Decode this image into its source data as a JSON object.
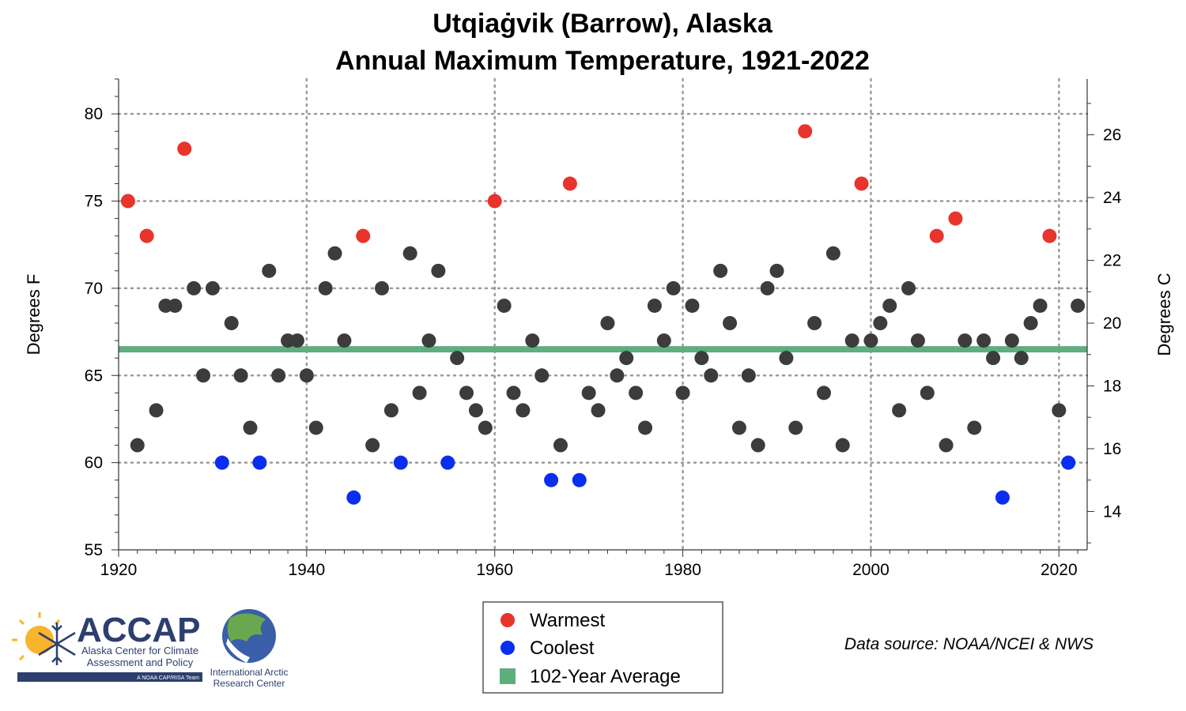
{
  "chart_data": {
    "type": "scatter",
    "title": [
      "Utqiaġvik (Barrow), Alaska",
      "Annual Maximum Temperature, 1921-2022"
    ],
    "ylabel": "Degrees F",
    "y2label": "Degrees C",
    "xlim": [
      1920,
      2023
    ],
    "ylim": [
      55,
      82
    ],
    "y2lim": [
      12.78,
      27.78
    ],
    "x_ticks": [
      1920,
      1940,
      1960,
      1980,
      2000,
      2020
    ],
    "y_ticks": [
      55,
      60,
      65,
      70,
      75,
      80
    ],
    "y2_ticks": [
      14,
      16,
      18,
      20,
      22,
      24,
      26
    ],
    "grid": true,
    "average": {
      "name": "102-Year Average",
      "value": 66.5,
      "color": "#5fae7e"
    },
    "colors": {
      "Warmest": "#e8342a",
      "Coolest": "#0a2ef0",
      "Normal": "#3c3c3c"
    },
    "points": [
      {
        "x": 1921,
        "y": 75,
        "c": "Warmest"
      },
      {
        "x": 1922,
        "y": 61,
        "c": "Normal"
      },
      {
        "x": 1923,
        "y": 73,
        "c": "Warmest"
      },
      {
        "x": 1924,
        "y": 63,
        "c": "Normal"
      },
      {
        "x": 1925,
        "y": 69,
        "c": "Normal"
      },
      {
        "x": 1926,
        "y": 69,
        "c": "Normal"
      },
      {
        "x": 1927,
        "y": 78,
        "c": "Warmest"
      },
      {
        "x": 1928,
        "y": 70,
        "c": "Normal"
      },
      {
        "x": 1929,
        "y": 65,
        "c": "Normal"
      },
      {
        "x": 1930,
        "y": 70,
        "c": "Normal"
      },
      {
        "x": 1931,
        "y": 60,
        "c": "Coolest"
      },
      {
        "x": 1932,
        "y": 68,
        "c": "Normal"
      },
      {
        "x": 1933,
        "y": 65,
        "c": "Normal"
      },
      {
        "x": 1934,
        "y": 62,
        "c": "Normal"
      },
      {
        "x": 1935,
        "y": 60,
        "c": "Coolest"
      },
      {
        "x": 1936,
        "y": 71,
        "c": "Normal"
      },
      {
        "x": 1937,
        "y": 65,
        "c": "Normal"
      },
      {
        "x": 1938,
        "y": 67,
        "c": "Normal"
      },
      {
        "x": 1939,
        "y": 67,
        "c": "Normal"
      },
      {
        "x": 1940,
        "y": 65,
        "c": "Normal"
      },
      {
        "x": 1941,
        "y": 62,
        "c": "Normal"
      },
      {
        "x": 1942,
        "y": 70,
        "c": "Normal"
      },
      {
        "x": 1943,
        "y": 72,
        "c": "Normal"
      },
      {
        "x": 1944,
        "y": 67,
        "c": "Normal"
      },
      {
        "x": 1945,
        "y": 58,
        "c": "Coolest"
      },
      {
        "x": 1946,
        "y": 73,
        "c": "Warmest"
      },
      {
        "x": 1947,
        "y": 61,
        "c": "Normal"
      },
      {
        "x": 1948,
        "y": 70,
        "c": "Normal"
      },
      {
        "x": 1949,
        "y": 63,
        "c": "Normal"
      },
      {
        "x": 1950,
        "y": 60,
        "c": "Coolest"
      },
      {
        "x": 1951,
        "y": 72,
        "c": "Normal"
      },
      {
        "x": 1952,
        "y": 64,
        "c": "Normal"
      },
      {
        "x": 1953,
        "y": 67,
        "c": "Normal"
      },
      {
        "x": 1954,
        "y": 71,
        "c": "Normal"
      },
      {
        "x": 1955,
        "y": 60,
        "c": "Coolest"
      },
      {
        "x": 1956,
        "y": 66,
        "c": "Normal"
      },
      {
        "x": 1957,
        "y": 64,
        "c": "Normal"
      },
      {
        "x": 1958,
        "y": 63,
        "c": "Normal"
      },
      {
        "x": 1959,
        "y": 62,
        "c": "Normal"
      },
      {
        "x": 1960,
        "y": 75,
        "c": "Warmest"
      },
      {
        "x": 1961,
        "y": 69,
        "c": "Normal"
      },
      {
        "x": 1962,
        "y": 64,
        "c": "Normal"
      },
      {
        "x": 1963,
        "y": 63,
        "c": "Normal"
      },
      {
        "x": 1964,
        "y": 67,
        "c": "Normal"
      },
      {
        "x": 1965,
        "y": 65,
        "c": "Normal"
      },
      {
        "x": 1966,
        "y": 59,
        "c": "Coolest"
      },
      {
        "x": 1967,
        "y": 61,
        "c": "Normal"
      },
      {
        "x": 1968,
        "y": 76,
        "c": "Warmest"
      },
      {
        "x": 1969,
        "y": 59,
        "c": "Coolest"
      },
      {
        "x": 1970,
        "y": 64,
        "c": "Normal"
      },
      {
        "x": 1971,
        "y": 63,
        "c": "Normal"
      },
      {
        "x": 1972,
        "y": 68,
        "c": "Normal"
      },
      {
        "x": 1973,
        "y": 65,
        "c": "Normal"
      },
      {
        "x": 1974,
        "y": 66,
        "c": "Normal"
      },
      {
        "x": 1975,
        "y": 64,
        "c": "Normal"
      },
      {
        "x": 1976,
        "y": 62,
        "c": "Normal"
      },
      {
        "x": 1977,
        "y": 69,
        "c": "Normal"
      },
      {
        "x": 1978,
        "y": 67,
        "c": "Normal"
      },
      {
        "x": 1979,
        "y": 70,
        "c": "Normal"
      },
      {
        "x": 1980,
        "y": 64,
        "c": "Normal"
      },
      {
        "x": 1981,
        "y": 69,
        "c": "Normal"
      },
      {
        "x": 1982,
        "y": 66,
        "c": "Normal"
      },
      {
        "x": 1983,
        "y": 65,
        "c": "Normal"
      },
      {
        "x": 1984,
        "y": 71,
        "c": "Normal"
      },
      {
        "x": 1985,
        "y": 68,
        "c": "Normal"
      },
      {
        "x": 1986,
        "y": 62,
        "c": "Normal"
      },
      {
        "x": 1987,
        "y": 65,
        "c": "Normal"
      },
      {
        "x": 1988,
        "y": 61,
        "c": "Normal"
      },
      {
        "x": 1989,
        "y": 70,
        "c": "Normal"
      },
      {
        "x": 1990,
        "y": 71,
        "c": "Normal"
      },
      {
        "x": 1991,
        "y": 66,
        "c": "Normal"
      },
      {
        "x": 1992,
        "y": 62,
        "c": "Normal"
      },
      {
        "x": 1993,
        "y": 79,
        "c": "Warmest"
      },
      {
        "x": 1994,
        "y": 68,
        "c": "Normal"
      },
      {
        "x": 1995,
        "y": 64,
        "c": "Normal"
      },
      {
        "x": 1996,
        "y": 72,
        "c": "Normal"
      },
      {
        "x": 1997,
        "y": 61,
        "c": "Normal"
      },
      {
        "x": 1998,
        "y": 67,
        "c": "Normal"
      },
      {
        "x": 1999,
        "y": 76,
        "c": "Warmest"
      },
      {
        "x": 2000,
        "y": 67,
        "c": "Normal"
      },
      {
        "x": 2001,
        "y": 68,
        "c": "Normal"
      },
      {
        "x": 2002,
        "y": 69,
        "c": "Normal"
      },
      {
        "x": 2003,
        "y": 63,
        "c": "Normal"
      },
      {
        "x": 2004,
        "y": 70,
        "c": "Normal"
      },
      {
        "x": 2005,
        "y": 67,
        "c": "Normal"
      },
      {
        "x": 2006,
        "y": 64,
        "c": "Normal"
      },
      {
        "x": 2007,
        "y": 73,
        "c": "Warmest"
      },
      {
        "x": 2008,
        "y": 61,
        "c": "Normal"
      },
      {
        "x": 2009,
        "y": 74,
        "c": "Warmest"
      },
      {
        "x": 2010,
        "y": 67,
        "c": "Normal"
      },
      {
        "x": 2011,
        "y": 62,
        "c": "Normal"
      },
      {
        "x": 2012,
        "y": 67,
        "c": "Normal"
      },
      {
        "x": 2013,
        "y": 66,
        "c": "Normal"
      },
      {
        "x": 2014,
        "y": 58,
        "c": "Coolest"
      },
      {
        "x": 2015,
        "y": 67,
        "c": "Normal"
      },
      {
        "x": 2016,
        "y": 66,
        "c": "Normal"
      },
      {
        "x": 2017,
        "y": 68,
        "c": "Normal"
      },
      {
        "x": 2018,
        "y": 69,
        "c": "Normal"
      },
      {
        "x": 2019,
        "y": 73,
        "c": "Warmest"
      },
      {
        "x": 2020,
        "y": 63,
        "c": "Normal"
      },
      {
        "x": 2021,
        "y": 60,
        "c": "Coolest"
      },
      {
        "x": 2022,
        "y": 69,
        "c": "Normal"
      }
    ],
    "legend": {
      "placement": "bottom-center",
      "entries": [
        {
          "label": "Warmest",
          "color": "#e8342a",
          "shape": "circle"
        },
        {
          "label": "Coolest",
          "color": "#0a2ef0",
          "shape": "circle"
        },
        {
          "label": "102-Year Average",
          "color": "#5fae7e",
          "shape": "square"
        }
      ]
    },
    "source": "Data source: NOAA/NCEI & NWS"
  },
  "logos": {
    "accap": {
      "name": "ACCAP",
      "line1": "Alaska Center for Climate",
      "line2": "Assessment and Policy",
      "tagline": "A NOAA CAP/RISA Team"
    },
    "iarc": {
      "line1": "International Arctic",
      "line2": "Research Center"
    }
  }
}
